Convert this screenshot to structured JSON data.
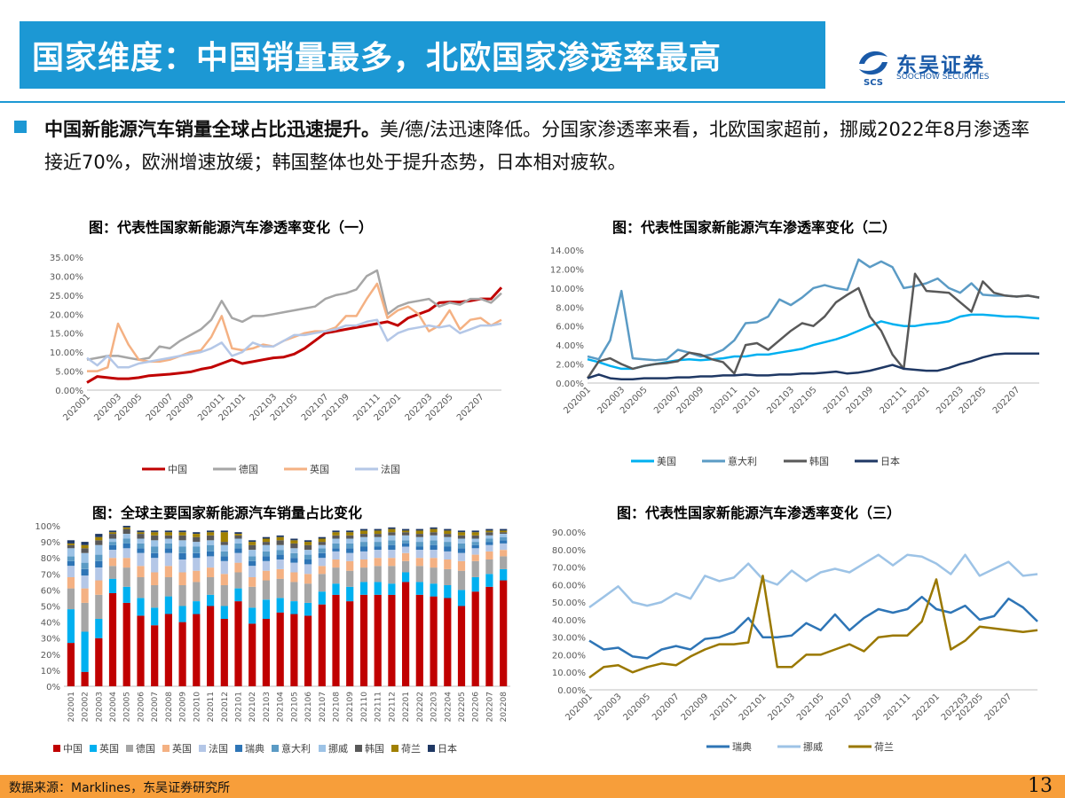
{
  "header": {
    "title": "国家维度：中国销量最多，北欧国家渗透率最高",
    "logo_cn": "东吴证券",
    "logo_en": "SOOCHOW SECURITIES",
    "logo_mark": "SCS"
  },
  "summary": {
    "bold": "中国新能源汽车销量全球占比迅速提升。",
    "text": "美/德/法迅速降低。分国家渗透率来看，北欧国家超前，挪威2022年8月渗透率接近70%，欧洲增速放缓；韩国整体也处于提升态势，日本相对疲软。"
  },
  "footer": {
    "source": "数据来源：Marklines，东吴证券研究所",
    "page": "13"
  },
  "colors": {
    "accent": "#1c98d4",
    "footer": "#f79e3a"
  },
  "chart_data": [
    {
      "type": "line",
      "title": "图：代表性国家新能源汽车渗透率变化（一）",
      "x_ticks": [
        "202001",
        "202003",
        "202005",
        "202007",
        "202009",
        "202011",
        "202101",
        "202103",
        "202105",
        "202107",
        "202109",
        "202111",
        "202201",
        "202203",
        "202205",
        "202207"
      ],
      "y_ticks": [
        "0.00%",
        "5.00%",
        "10.00%",
        "15.00%",
        "20.00%",
        "25.00%",
        "30.00%",
        "35.00%"
      ],
      "ylim": [
        0,
        35
      ],
      "legend_position": "bottom",
      "series": [
        {
          "name": "中国",
          "color": "#c00000",
          "width": 3,
          "values": [
            2,
            3.6,
            3.3,
            3,
            3,
            3.3,
            3.8,
            4,
            4.2,
            4.5,
            4.8,
            5.5,
            6,
            7,
            8,
            7,
            7.5,
            8,
            8.5,
            8.7,
            9.5,
            11,
            13,
            15,
            15.5,
            16,
            16.5,
            17,
            17.5,
            18,
            17,
            19,
            20,
            21,
            23,
            23.2,
            23.2,
            23.5,
            24,
            24,
            27
          ]
        },
        {
          "name": "德国",
          "color": "#a6a6a6",
          "width": 2.5,
          "values": [
            8,
            8.5,
            9,
            9,
            8.5,
            8,
            8.5,
            11.5,
            11,
            13,
            14.5,
            16,
            18.5,
            23.5,
            19,
            18,
            19.5,
            19.5,
            20,
            20.5,
            21,
            21.5,
            22,
            24,
            25,
            25.5,
            26.5,
            30,
            31.5,
            20,
            22,
            23,
            23.5,
            24,
            22,
            23,
            22.5,
            24,
            24,
            23,
            25.5
          ]
        },
        {
          "name": "英国",
          "color": "#f4b183",
          "width": 2.5,
          "values": [
            5,
            5,
            6,
            17.5,
            12,
            8,
            7.5,
            7.5,
            8,
            9,
            10,
            10.5,
            14,
            19.5,
            11,
            10.5,
            11,
            12,
            11.5,
            13,
            14,
            15,
            15.5,
            15.5,
            16.5,
            19.5,
            19.5,
            24,
            28,
            19,
            21,
            22,
            20,
            15.5,
            17,
            21,
            16,
            18.5,
            19,
            17,
            18.5
          ]
        },
        {
          "name": "法国",
          "color": "#b4c7e7",
          "width": 2.5,
          "values": [
            8.5,
            6.5,
            9,
            6,
            6,
            7,
            7.5,
            8,
            8.5,
            9,
            9.5,
            10,
            11,
            12.5,
            9,
            10,
            12.5,
            11.5,
            11.5,
            13,
            14.5,
            14.5,
            15,
            15.5,
            16,
            17,
            17,
            18,
            18.5,
            13,
            15,
            16,
            16.5,
            17,
            16.5,
            17,
            15,
            16,
            17,
            17,
            17.5
          ]
        }
      ]
    },
    {
      "type": "line",
      "title": "图：代表性国家新能源汽车渗透率变化（二）",
      "x_ticks": [
        "202001",
        "202003",
        "202005",
        "202007",
        "202009",
        "202011",
        "202101",
        "202103",
        "202105",
        "202107",
        "202109",
        "202111",
        "202201",
        "202203",
        "202205",
        "202207"
      ],
      "y_ticks": [
        "0.00%",
        "2.00%",
        "4.00%",
        "6.00%",
        "8.00%",
        "10.00%",
        "12.00%",
        "14.00%"
      ],
      "ylim": [
        0,
        14
      ],
      "legend_position": "bottom",
      "series": [
        {
          "name": "美国",
          "color": "#00b0f0",
          "width": 2.5,
          "values": [
            2.5,
            2.2,
            1.8,
            1.5,
            1.5,
            1.8,
            2,
            2.2,
            2.4,
            2.5,
            2.4,
            2.5,
            2.6,
            2.8,
            2.8,
            3,
            3,
            3.2,
            3.4,
            3.6,
            4,
            4.3,
            4.6,
            5,
            5.5,
            6,
            6.5,
            6.2,
            6,
            6,
            6.2,
            6.3,
            6.5,
            7,
            7.2,
            7.2,
            7.1,
            7,
            7,
            6.9,
            6.8
          ]
        },
        {
          "name": "意大利",
          "color": "#5b9bc5",
          "width": 2.5,
          "values": [
            2.8,
            2.5,
            4.5,
            9.7,
            2.6,
            2.5,
            2.4,
            2.5,
            3.5,
            3.2,
            2.8,
            3,
            3.5,
            4.5,
            6.3,
            6.4,
            7,
            8.8,
            8.2,
            9,
            10,
            10.3,
            10,
            9.8,
            13,
            12.2,
            12.8,
            12.2,
            10,
            10.2,
            10.5,
            11,
            10,
            9.5,
            10.5,
            9.3,
            9.2,
            9.2,
            9.1,
            9.2,
            9
          ]
        },
        {
          "name": "韩国",
          "color": "#595959",
          "width": 2.5,
          "values": [
            0.5,
            2.3,
            2.6,
            2,
            1.5,
            1.8,
            2,
            2.1,
            2.3,
            3.2,
            3,
            2.5,
            2.2,
            1,
            4,
            4.2,
            3.5,
            4.5,
            5.5,
            6.3,
            6,
            7,
            8.5,
            9.3,
            10,
            7,
            5.5,
            3,
            1.5,
            11.5,
            9.7,
            9.6,
            9.5,
            8.5,
            7.5,
            10.7,
            9.5,
            9.2,
            9.1,
            9.2,
            9
          ]
        },
        {
          "name": "日本",
          "color": "#1f3864",
          "width": 2.5,
          "values": [
            0.5,
            0.9,
            0.5,
            0.4,
            0.4,
            0.5,
            0.5,
            0.5,
            0.6,
            0.6,
            0.7,
            0.7,
            0.8,
            0.8,
            0.9,
            0.8,
            0.8,
            0.9,
            0.9,
            1,
            1,
            1.1,
            1.2,
            1,
            1.1,
            1.3,
            1.6,
            1.9,
            1.5,
            1.4,
            1.3,
            1.3,
            1.6,
            2,
            2.3,
            2.7,
            3,
            3.1,
            3.1,
            3.1,
            3.1
          ]
        }
      ]
    },
    {
      "type": "bar",
      "stacked": true,
      "title": "图：全球主要国家新能源汽车销量占比变化",
      "categories": [
        "202001",
        "202002",
        "202003",
        "202004",
        "202005",
        "202006",
        "202007",
        "202008",
        "202009",
        "202010",
        "202011",
        "202012",
        "202101",
        "202102",
        "202103",
        "202104",
        "202105",
        "202106",
        "202107",
        "202108",
        "202109",
        "202110",
        "202111",
        "202112",
        "202201",
        "202202",
        "202203",
        "202204",
        "202205",
        "202206",
        "202207",
        "202208"
      ],
      "y_ticks": [
        "0%",
        "10%",
        "20%",
        "30%",
        "40%",
        "50%",
        "60%",
        "70%",
        "80%",
        "90%",
        "100%"
      ],
      "ylim": [
        0,
        100
      ],
      "legend_position": "bottom",
      "series": [
        {
          "name": "中国",
          "color": "#c00000",
          "values": [
            27,
            9,
            30,
            58,
            52,
            44,
            38,
            45,
            40,
            45,
            50,
            42,
            53,
            39,
            42,
            46,
            45,
            44,
            51,
            57,
            53,
            57,
            57,
            57,
            65,
            57,
            56,
            55,
            50,
            59,
            62,
            66
          ]
        },
        {
          "name": "英国",
          "color": "#00b0f0",
          "values": [
            21,
            25,
            12,
            9,
            10,
            11,
            11,
            11,
            10,
            8,
            7,
            8,
            8,
            10,
            12,
            9,
            8,
            8,
            8,
            7,
            9,
            8,
            8,
            7,
            6,
            8,
            8,
            8,
            10,
            9,
            8,
            7
          ]
        },
        {
          "name": "德国",
          "color": "#a6a6a6",
          "values": [
            13,
            18,
            15,
            8,
            12,
            13,
            14,
            12,
            13,
            12,
            11,
            13,
            10,
            13,
            12,
            12,
            12,
            12,
            11,
            10,
            10,
            9,
            10,
            11,
            7,
            10,
            10,
            10,
            12,
            10,
            9,
            8
          ]
        },
        {
          "name": "英国",
          "color": "#f4b183",
          "values": [
            7,
            9,
            9,
            5,
            6,
            7,
            8,
            7,
            8,
            7,
            6,
            7,
            6,
            6,
            6,
            6,
            6,
            6,
            5,
            5,
            6,
            5,
            5,
            5,
            5,
            5,
            6,
            6,
            6,
            4,
            5,
            4
          ]
        },
        {
          "name": "法国",
          "color": "#b4c7e7",
          "values": [
            7,
            8,
            8,
            5,
            6,
            8,
            9,
            8,
            8,
            8,
            7,
            8,
            6,
            7,
            6,
            6,
            6,
            6,
            5,
            5,
            5,
            5,
            5,
            5,
            4,
            5,
            5,
            5,
            5,
            4,
            4,
            4
          ]
        },
        {
          "name": "瑞典",
          "color": "#2e75b6",
          "values": [
            3,
            4,
            4,
            3,
            3,
            3,
            3,
            3,
            4,
            3,
            3,
            3,
            3,
            3,
            3,
            3,
            3,
            3,
            3,
            2,
            3,
            3,
            2,
            3,
            2,
            2,
            3,
            3,
            3,
            2,
            2,
            2
          ]
        },
        {
          "name": "意大利",
          "color": "#5b9bc5",
          "values": [
            3,
            4,
            4,
            2,
            3,
            3,
            4,
            3,
            4,
            4,
            4,
            3,
            3,
            3,
            3,
            3,
            3,
            3,
            3,
            3,
            3,
            3,
            3,
            3,
            2,
            3,
            3,
            3,
            3,
            2,
            2,
            2
          ]
        },
        {
          "name": "挪威",
          "color": "#9dc3e6",
          "values": [
            5,
            6,
            6,
            2,
            3,
            3,
            4,
            3,
            4,
            3,
            3,
            4,
            3,
            4,
            4,
            3,
            3,
            3,
            2,
            3,
            3,
            3,
            3,
            3,
            3,
            3,
            3,
            3,
            3,
            2,
            2,
            2
          ]
        },
        {
          "name": "韩国",
          "color": "#595959",
          "values": [
            2,
            3,
            3,
            3,
            3,
            3,
            3,
            2,
            3,
            3,
            3,
            2,
            2,
            3,
            2,
            3,
            3,
            3,
            2,
            2,
            2,
            2,
            2,
            2,
            2,
            2,
            2,
            2,
            2,
            2,
            2,
            1
          ]
        },
        {
          "name": "荷兰",
          "color": "#a08000",
          "values": [
            1,
            2,
            2,
            1,
            1,
            1,
            2,
            2,
            2,
            2,
            2,
            6,
            1,
            2,
            2,
            2,
            2,
            2,
            2,
            2,
            2,
            2,
            2,
            2,
            1,
            2,
            2,
            2,
            2,
            2,
            1,
            1
          ]
        },
        {
          "name": "日本",
          "color": "#1f3864",
          "values": [
            2,
            2,
            2,
            1,
            1,
            1,
            1,
            1,
            1,
            1,
            1,
            1,
            1,
            1,
            1,
            1,
            1,
            1,
            1,
            1,
            1,
            1,
            1,
            1,
            1,
            1,
            1,
            1,
            1,
            1,
            1,
            1
          ]
        }
      ]
    },
    {
      "type": "line",
      "title": "图：代表性国家新能源汽车渗透率变化（三）",
      "x_ticks": [
        "202001",
        "202003",
        "202005",
        "202007",
        "202009",
        "202011",
        "202101",
        "202103",
        "202105",
        "202107",
        "202109",
        "202111",
        "202201",
        "202203",
        "202205",
        "202207"
      ],
      "y_ticks": [
        "0.00%",
        "10.00%",
        "20.00%",
        "30.00%",
        "40.00%",
        "50.00%",
        "60.00%",
        "70.00%",
        "80.00%",
        "90.00%"
      ],
      "ylim": [
        0,
        90
      ],
      "legend_position": "bottom",
      "series": [
        {
          "name": "瑞典",
          "color": "#2e75b6",
          "width": 2.5,
          "values": [
            28,
            23,
            24,
            19,
            18,
            23,
            25,
            23,
            29,
            30,
            33,
            41,
            30,
            30,
            31,
            38,
            34,
            43,
            34,
            41,
            46,
            44,
            46,
            53,
            46,
            44,
            48,
            40,
            42,
            52,
            47,
            39
          ]
        },
        {
          "name": "挪威",
          "color": "#9dc3e6",
          "width": 2.5,
          "values": [
            47,
            53,
            59,
            50,
            48,
            50,
            55,
            52,
            65,
            62,
            64,
            72,
            63,
            60,
            68,
            62,
            67,
            69,
            67,
            72,
            77,
            71,
            77,
            76,
            72,
            66,
            77,
            65,
            69,
            73,
            65,
            66
          ]
        },
        {
          "name": "荷兰",
          "color": "#9a7800",
          "width": 2.5,
          "values": [
            7,
            13,
            14,
            10,
            13,
            15,
            14,
            19,
            23,
            26,
            26,
            27,
            65,
            13,
            13,
            20,
            20,
            23,
            26,
            22,
            30,
            31,
            31,
            39,
            63,
            23,
            28,
            36,
            35,
            34,
            33,
            34
          ]
        }
      ]
    }
  ]
}
